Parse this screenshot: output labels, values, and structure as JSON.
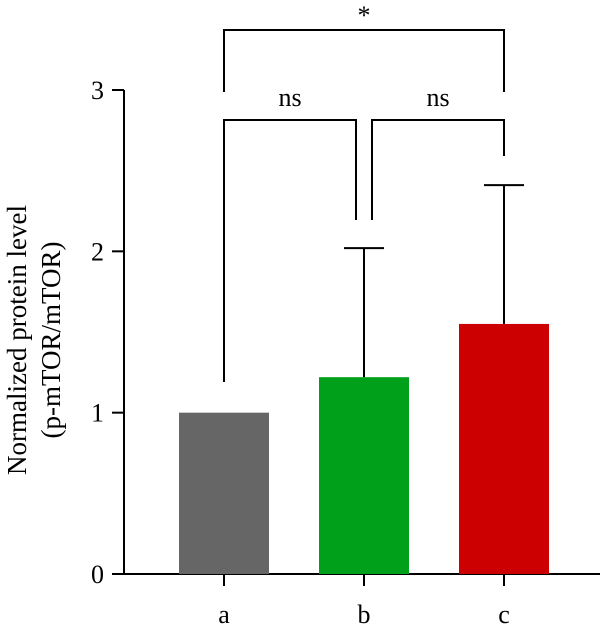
{
  "chart_data": {
    "type": "bar",
    "categories": [
      "a",
      "b",
      "c"
    ],
    "values": [
      1.0,
      1.22,
      1.55
    ],
    "errors_upper": [
      0,
      0.8,
      0.86
    ],
    "colors": [
      "#666666",
      "#00a01a",
      "#cc0000"
    ],
    "ylabel_line1": "Normalized protein level",
    "ylabel_line2": "(p-mTOR/mTOR)",
    "xlabel": "",
    "title": "",
    "ylim": [
      0,
      3
    ],
    "yticks": [
      0,
      1,
      2,
      3
    ],
    "ytick_labels": [
      "0",
      "1",
      "2",
      "3"
    ],
    "grid": false,
    "significance": [
      {
        "from": "a",
        "to": "b",
        "label": "ns"
      },
      {
        "from": "b",
        "to": "c",
        "label": "ns"
      },
      {
        "from": "a",
        "to": "c",
        "label": "*"
      }
    ]
  }
}
